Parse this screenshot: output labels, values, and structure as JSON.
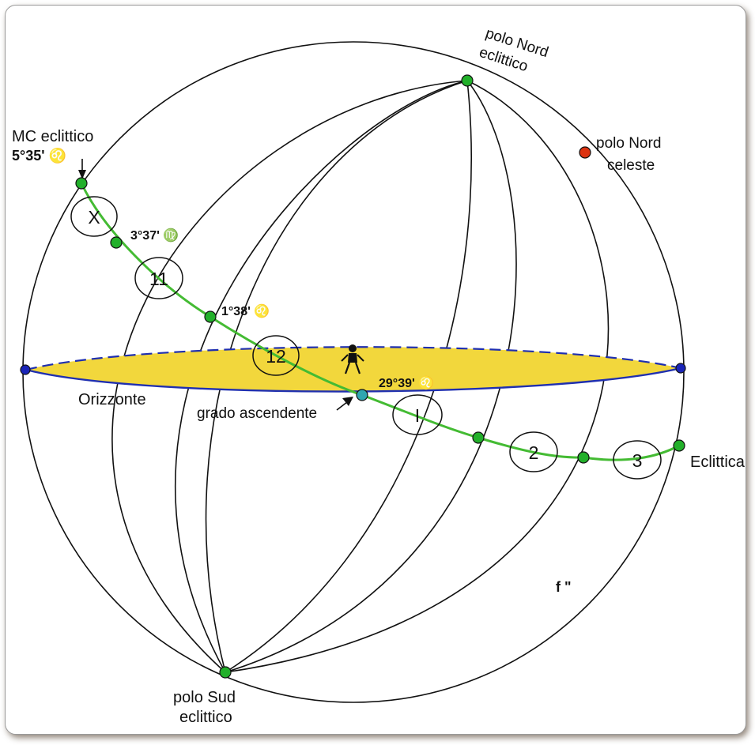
{
  "colors": {
    "horizon_fill": "#f2d73c",
    "horizon_stroke": "#1f2fb0",
    "ecliptic": "#44bb33",
    "green_point": "#22b02a",
    "blue_point": "#1a25b8",
    "red_point": "#dd3311",
    "ascendant_point": "#2fa6b0"
  },
  "labels": {
    "north_ecliptic_pole_line1": "polo Nord",
    "north_ecliptic_pole_line2": "eclittico",
    "north_celestial_pole_line1": "polo Nord",
    "north_celestial_pole_line2": "celeste",
    "mc_line1": "MC eclittico",
    "mc_line2": "5°35' ♌",
    "cusp11": "3°37' ♍",
    "cusp12": "1°38' ♌",
    "ascendant_degree": "29°39' ♌",
    "horizon": "Orizzonte",
    "ascendant": "grado ascendente",
    "ecliptic": "Eclittica",
    "south_ecliptic_pole_line1": "polo Sud",
    "south_ecliptic_pole_line2": "eclittico",
    "figure_id": "f \""
  },
  "houses": [
    "X",
    "11",
    "12",
    "I",
    "2",
    "3"
  ],
  "icons": {
    "observer": "observer-figure-icon",
    "arrow": "pointer-arrow-icon"
  }
}
